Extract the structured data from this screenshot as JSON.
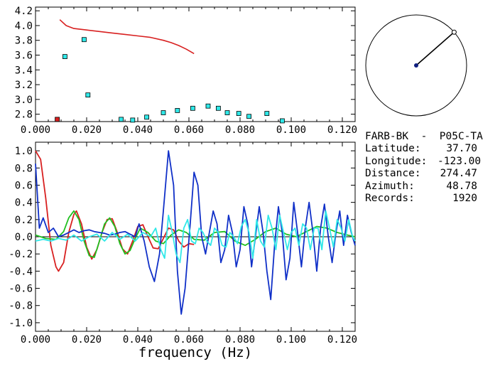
{
  "colors": {
    "red": "#d82020",
    "green": "#20c020",
    "blue": "#1030c8",
    "cyan": "#30e8e8",
    "axis": "#000000"
  },
  "info": {
    "station": "FARB-BK  -  P05C-TA",
    "rows": [
      {
        "label": "Latitude:",
        "value": "37.70"
      },
      {
        "label": "Longitude:",
        "value": "-123.00"
      },
      {
        "label": "Distance:",
        "value": "274.47"
      },
      {
        "label": "Azimuth:",
        "value": "48.78"
      },
      {
        "label": "Records:",
        "value": "1920"
      }
    ]
  },
  "compass": {
    "azimuth_deg": 48.78
  },
  "chart_data": [
    {
      "type": "scatter",
      "xlim": [
        0,
        0.125
      ],
      "ylim": [
        2.7,
        4.25
      ],
      "x_ticks": [
        "0.000",
        "0.020",
        "0.040",
        "0.060",
        "0.080",
        "0.100",
        "0.120"
      ],
      "y_ticks": [
        "2.8",
        "3.0",
        "3.2",
        "3.4",
        "3.6",
        "3.8",
        "4.0",
        "4.2"
      ],
      "xlabel": "",
      "ylabel": "",
      "series": [
        {
          "color": "red-line",
          "kind": "line",
          "x": [
            0.0095,
            0.012,
            0.015,
            0.02,
            0.025,
            0.03,
            0.035,
            0.04,
            0.045,
            0.05,
            0.053,
            0.056,
            0.059,
            0.062
          ],
          "y": [
            4.08,
            4.0,
            3.96,
            3.94,
            3.92,
            3.9,
            3.88,
            3.86,
            3.84,
            3.8,
            3.77,
            3.73,
            3.68,
            3.62
          ]
        },
        {
          "color": "cyan-markers",
          "kind": "markers",
          "x": [
            0.0115,
            0.019,
            0.0205,
            0.0335,
            0.038,
            0.0435,
            0.05,
            0.0555,
            0.0615,
            0.0675,
            0.0715,
            0.075,
            0.0795,
            0.0835,
            0.0905,
            0.0965
          ],
          "y": [
            3.58,
            3.81,
            3.06,
            2.73,
            2.72,
            2.76,
            2.82,
            2.85,
            2.88,
            2.91,
            2.88,
            2.82,
            2.81,
            2.77,
            2.81,
            2.71
          ]
        },
        {
          "color": "red-marker",
          "kind": "markers",
          "x": [
            0.0085
          ],
          "y": [
            2.73
          ]
        }
      ]
    },
    {
      "type": "line",
      "xlim": [
        0,
        0.125
      ],
      "ylim": [
        -1.1,
        1.1
      ],
      "x_ticks": [
        "0.000",
        "0.020",
        "0.040",
        "0.060",
        "0.080",
        "0.100",
        "0.120"
      ],
      "y_ticks": [
        "1.0",
        "0.8",
        "0.6",
        "0.4",
        "0.2",
        "0.0",
        "-0.2",
        "-0.4",
        "-0.6",
        "-0.8",
        "-1.0"
      ],
      "xlabel": "frequency (Hz)",
      "ylabel": "",
      "series": [
        {
          "color": "red",
          "x": [
            0.0,
            0.002,
            0.004,
            0.006,
            0.008,
            0.009,
            0.011,
            0.013,
            0.015,
            0.016,
            0.018,
            0.02,
            0.022,
            0.024,
            0.026,
            0.028,
            0.03,
            0.032,
            0.034,
            0.036,
            0.038,
            0.04,
            0.042,
            0.044,
            0.046,
            0.048,
            0.05,
            0.052,
            0.054,
            0.056,
            0.058,
            0.06,
            0.062
          ],
          "y": [
            1.0,
            0.9,
            0.45,
            -0.1,
            -0.35,
            -0.4,
            -0.3,
            0.05,
            0.26,
            0.3,
            0.15,
            -0.12,
            -0.26,
            -0.15,
            0.05,
            0.2,
            0.21,
            0.05,
            -0.14,
            -0.2,
            -0.05,
            0.12,
            0.14,
            0.0,
            -0.13,
            -0.14,
            -0.02,
            0.1,
            0.08,
            -0.05,
            -0.12,
            -0.08,
            -0.09
          ]
        },
        {
          "color": "green",
          "x": [
            0.0,
            0.004,
            0.008,
            0.011,
            0.013,
            0.015,
            0.017,
            0.019,
            0.021,
            0.023,
            0.025,
            0.027,
            0.029,
            0.031,
            0.033,
            0.035,
            0.037,
            0.039,
            0.041,
            0.044,
            0.047,
            0.05,
            0.053,
            0.056,
            0.059,
            0.062,
            0.066,
            0.07,
            0.074,
            0.078,
            0.082,
            0.086,
            0.09,
            0.094,
            0.098,
            0.102,
            0.106,
            0.11,
            0.114,
            0.118,
            0.122,
            0.125
          ],
          "y": [
            0.02,
            -0.02,
            -0.03,
            0.06,
            0.22,
            0.3,
            0.2,
            -0.05,
            -0.22,
            -0.24,
            -0.05,
            0.15,
            0.22,
            0.12,
            -0.08,
            -0.2,
            -0.16,
            -0.02,
            0.1,
            0.05,
            -0.05,
            -0.08,
            0.02,
            0.08,
            0.05,
            -0.03,
            -0.04,
            0.05,
            0.06,
            -0.05,
            -0.1,
            -0.03,
            0.06,
            0.1,
            0.03,
            0.0,
            0.06,
            0.12,
            0.1,
            0.05,
            0.02,
            0.0
          ]
        },
        {
          "color": "blue",
          "x": [
            0.0,
            0.0015,
            0.003,
            0.005,
            0.007,
            0.009,
            0.011,
            0.013,
            0.015,
            0.017,
            0.019,
            0.021,
            0.023,
            0.025,
            0.027,
            0.029,
            0.031,
            0.033,
            0.035,
            0.037,
            0.039,
            0.0405,
            0.0425,
            0.0445,
            0.0465,
            0.0485,
            0.05,
            0.052,
            0.054,
            0.0555,
            0.057,
            0.0585,
            0.0605,
            0.062,
            0.0635,
            0.065,
            0.0665,
            0.068,
            0.0695,
            0.071,
            0.0725,
            0.074,
            0.0755,
            0.077,
            0.0785,
            0.08,
            0.0815,
            0.083,
            0.0845,
            0.086,
            0.0875,
            0.089,
            0.0905,
            0.092,
            0.0935,
            0.095,
            0.0965,
            0.098,
            0.0995,
            0.101,
            0.1025,
            0.104,
            0.1055,
            0.107,
            0.1085,
            0.11,
            0.1115,
            0.113,
            0.1145,
            0.116,
            0.1175,
            0.119,
            0.1205,
            0.122,
            0.1235,
            0.125
          ],
          "y": [
            0.85,
            0.1,
            0.22,
            0.05,
            0.1,
            0.0,
            0.02,
            0.05,
            0.08,
            0.05,
            0.07,
            0.08,
            0.06,
            0.05,
            0.04,
            0.02,
            0.03,
            0.05,
            0.06,
            0.03,
            0.0,
            0.15,
            -0.05,
            -0.35,
            -0.52,
            -0.2,
            0.3,
            1.0,
            0.6,
            -0.4,
            -0.9,
            -0.6,
            0.15,
            0.75,
            0.6,
            0.0,
            -0.2,
            0.05,
            0.3,
            0.15,
            -0.3,
            -0.15,
            0.25,
            0.05,
            -0.35,
            -0.15,
            0.35,
            0.15,
            -0.35,
            0.0,
            0.35,
            0.05,
            -0.4,
            -0.73,
            -0.1,
            0.35,
            0.05,
            -0.5,
            -0.25,
            0.4,
            0.05,
            -0.35,
            0.1,
            0.4,
            0.05,
            -0.4,
            0.1,
            0.38,
            0.0,
            -0.3,
            0.05,
            0.3,
            -0.1,
            0.25,
            0.05,
            -0.1
          ]
        },
        {
          "color": "cyan",
          "x": [
            0.0,
            0.003,
            0.006,
            0.009,
            0.012,
            0.015,
            0.018,
            0.021,
            0.024,
            0.027,
            0.03,
            0.033,
            0.036,
            0.039,
            0.042,
            0.045,
            0.047,
            0.049,
            0.0505,
            0.052,
            0.0535,
            0.055,
            0.0565,
            0.058,
            0.0595,
            0.061,
            0.0625,
            0.064,
            0.0655,
            0.067,
            0.0685,
            0.07,
            0.0715,
            0.073,
            0.0745,
            0.076,
            0.0775,
            0.079,
            0.0805,
            0.082,
            0.0835,
            0.085,
            0.0865,
            0.088,
            0.0895,
            0.091,
            0.0925,
            0.094,
            0.0955,
            0.097,
            0.0985,
            0.1,
            0.1015,
            0.103,
            0.1045,
            0.106,
            0.1075,
            0.109,
            0.1105,
            0.112,
            0.1135,
            0.115,
            0.1165,
            0.118,
            0.1195,
            0.121,
            0.1225,
            0.124,
            0.125
          ],
          "y": [
            -0.05,
            -0.03,
            -0.05,
            -0.02,
            -0.04,
            0.02,
            -0.05,
            0.0,
            0.03,
            -0.05,
            0.05,
            -0.03,
            0.03,
            -0.05,
            0.05,
            0.0,
            0.1,
            -0.15,
            -0.25,
            0.25,
            0.05,
            -0.2,
            -0.3,
            0.1,
            0.2,
            -0.05,
            -0.08,
            0.1,
            0.05,
            -0.05,
            -0.1,
            0.1,
            0.05,
            -0.1,
            -0.12,
            0.05,
            0.0,
            -0.08,
            0.12,
            0.2,
            0.05,
            -0.25,
            0.2,
            -0.05,
            -0.12,
            0.25,
            0.1,
            -0.15,
            0.25,
            0.05,
            -0.15,
            0.05,
            0.1,
            -0.1,
            0.15,
            0.1,
            -0.15,
            0.1,
            0.1,
            -0.15,
            0.3,
            0.1,
            -0.12,
            0.2,
            0.1,
            -0.05,
            0.2,
            0.0,
            -0.05
          ]
        }
      ]
    }
  ]
}
